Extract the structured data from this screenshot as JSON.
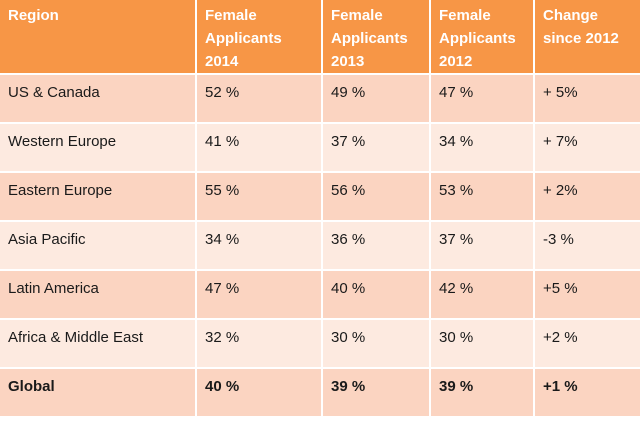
{
  "colors": {
    "header_bg": "#f79646",
    "row_odd": "#fbd4c1",
    "row_even": "#fdeae0"
  },
  "headers": [
    "Region",
    "Female\nApplicants\n2014",
    "Female\nApplicants\n2013",
    "Female\nApplicants\n2012",
    "Change\nsince 2012"
  ],
  "rows": [
    [
      "US & Canada",
      "52 %",
      "49 %",
      "47 %",
      "+ 5%"
    ],
    [
      "Western Europe",
      "41 %",
      "37 %",
      "34 %",
      "+ 7%"
    ],
    [
      "Eastern Europe",
      "55 %",
      "56 %",
      "53 %",
      "+ 2%"
    ],
    [
      "Asia Pacific",
      "34 %",
      "36 %",
      "37 %",
      "-3 %"
    ],
    [
      "Latin America",
      "47 %",
      "40 %",
      "42 %",
      "+5 %"
    ],
    [
      "Africa & Middle East",
      "32 %",
      "30 %",
      "30 %",
      "+2 %"
    ],
    [
      "Global",
      "40 %",
      "39 %",
      "39 %",
      "+1 %"
    ]
  ]
}
